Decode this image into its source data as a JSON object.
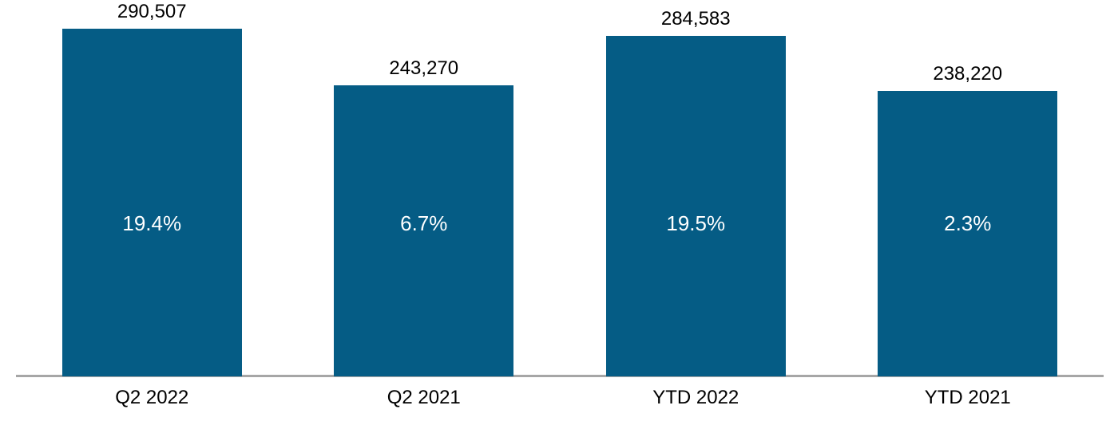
{
  "chart_data": {
    "type": "bar",
    "categories": [
      "Q2 2022",
      "Q2 2021",
      "YTD 2022",
      "YTD 2021"
    ],
    "values": [
      290507,
      243270,
      284583,
      238220
    ],
    "value_labels": [
      "290,507",
      "243,270",
      "284,583",
      "238,220"
    ],
    "percent_labels": [
      "19.4%",
      "6.7%",
      "19.5%",
      "2.3%"
    ],
    "title": "",
    "xlabel": "",
    "ylabel": "",
    "ylim": [
      0,
      300000
    ],
    "grid": false,
    "legend": "none",
    "colors": {
      "bar_fill": "#055C85",
      "value_label_text": "#000000",
      "percent_label_text": "#FFFFFF",
      "category_label_text": "#000000",
      "axis_line": "#A6A6A6",
      "background": "#FFFFFF"
    }
  }
}
